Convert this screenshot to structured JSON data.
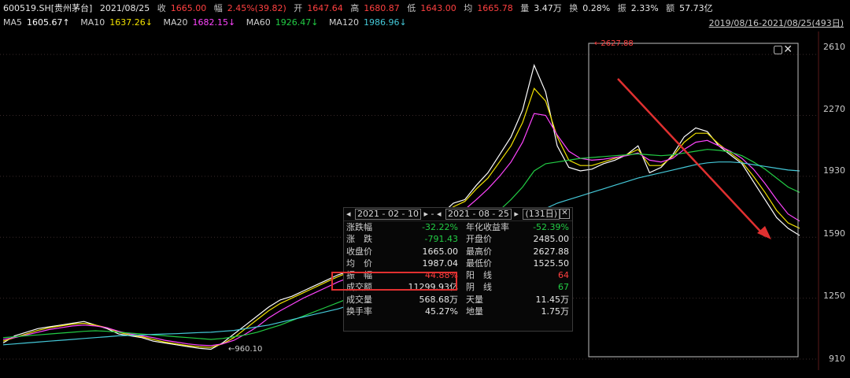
{
  "info": {
    "code": "600519.SH[贵州茅台]",
    "date": "2021/08/25",
    "close_label": "收",
    "close": "1665.00",
    "change_label": "幅",
    "change": "2.45%(39.82)",
    "open_label": "开",
    "open": "1647.64",
    "high_label": "高",
    "high": "1680.87",
    "low_label": "低",
    "low": "1643.00",
    "avg_label": "均",
    "avg": "1665.78",
    "vol_label": "量",
    "vol": "3.47万",
    "turn_label": "换",
    "turn": "0.28%",
    "amp_label": "振",
    "amp": "2.33%",
    "amount_label": "额",
    "amount": "57.73亿"
  },
  "ma": [
    {
      "label": "MA5",
      "value": "1605.67↑",
      "color": "#ffffff"
    },
    {
      "label": "MA10",
      "value": "1637.26↓",
      "color": "#f0e000"
    },
    {
      "label": "MA20",
      "value": "1682.15↓",
      "color": "#ff44ff"
    },
    {
      "label": "MA60",
      "value": "1926.47↓",
      "color": "#22cc44"
    },
    {
      "label": "MA120",
      "value": "1986.96↓",
      "color": "#44c8d8"
    }
  ],
  "date_range": "2019/08/16-2021/08/25(493日)",
  "y_axis": [
    "2610",
    "2270",
    "1930",
    "1590",
    "1250",
    "910"
  ],
  "peak_label": "2627.88",
  "low_label": "960.10",
  "stats": {
    "start_date": "2021 - 02 - 10",
    "end_date": "2021 - 08 - 25",
    "days": "(131日)",
    "rows": [
      {
        "l": "涨跌幅",
        "v": "-32.22%",
        "vc": "#22cc44",
        "l2": "年化收益率",
        "v2": "-52.39%",
        "v2c": "#22cc44"
      },
      {
        "l": "涨　跌",
        "v": "-791.43",
        "vc": "#22cc44",
        "l2": "开盘价",
        "v2": "2485.00",
        "v2c": "#e6e6e6"
      },
      {
        "l": "收盘价",
        "v": "1665.00",
        "vc": "#e6e6e6",
        "l2": "最高价",
        "v2": "2627.88",
        "v2c": "#e6e6e6"
      },
      {
        "l": "均　价",
        "v": "1987.04",
        "vc": "#e6e6e6",
        "l2": "最低价",
        "v2": "1525.50",
        "v2c": "#e6e6e6"
      },
      {
        "l": "振　幅",
        "v": "44.88%",
        "vc": "#ff4040",
        "l2": "阳　线",
        "v2": "64",
        "v2c": "#ff4040"
      },
      {
        "l": "成交额",
        "v": "11299.93亿",
        "vc": "#e6e6e6",
        "l2": "阴　线",
        "v2": "67",
        "v2c": "#22cc44"
      },
      {
        "l": "成交量",
        "v": "568.68万",
        "vc": "#e6e6e6",
        "l2": "天量",
        "v2": "11.45万",
        "v2c": "#e6e6e6"
      },
      {
        "l": "换手率",
        "v": "45.27%",
        "vc": "#e6e6e6",
        "l2": "地量",
        "v2": "1.75万",
        "v2c": "#e6e6e6"
      }
    ]
  },
  "chart_data": {
    "type": "line",
    "ylim": [
      910,
      2650
    ],
    "y_ticks": [
      2610,
      2270,
      1930,
      1590,
      1250,
      910
    ],
    "series": [
      {
        "color": "#ffffff",
        "values": [
          1000,
          1040,
          1060,
          1080,
          1090,
          1100,
          1110,
          1120,
          1100,
          1080,
          1050,
          1040,
          1030,
          1010,
          1000,
          990,
          980,
          970,
          965,
          1000,
          1050,
          1100,
          1150,
          1200,
          1240,
          1260,
          1290,
          1320,
          1350,
          1380,
          1400,
          1440,
          1480,
          1520,
          1560,
          1600,
          1650,
          1700,
          1720,
          1780,
          1800,
          1880,
          1950,
          2050,
          2150,
          2300,
          2550,
          2400,
          2100,
          1980,
          1960,
          1970,
          2000,
          2020,
          2050,
          2100,
          1950,
          1980,
          2050,
          2150,
          2200,
          2180,
          2100,
          2050,
          2000,
          1900,
          1800,
          1700,
          1640,
          1600
        ]
      },
      {
        "color": "#f0e000",
        "values": [
          1010,
          1030,
          1050,
          1070,
          1085,
          1095,
          1105,
          1110,
          1100,
          1085,
          1060,
          1045,
          1035,
          1020,
          1005,
          995,
          985,
          978,
          975,
          995,
          1030,
          1080,
          1130,
          1180,
          1220,
          1250,
          1280,
          1310,
          1340,
          1370,
          1395,
          1430,
          1465,
          1505,
          1545,
          1585,
          1630,
          1680,
          1710,
          1760,
          1790,
          1860,
          1920,
          2010,
          2100,
          2230,
          2420,
          2350,
          2150,
          2020,
          1990,
          1990,
          2010,
          2030,
          2050,
          2080,
          1990,
          1990,
          2040,
          2120,
          2170,
          2170,
          2110,
          2060,
          2010,
          1930,
          1840,
          1740,
          1670,
          1640
        ]
      },
      {
        "color": "#ff44ff",
        "values": [
          1020,
          1030,
          1045,
          1060,
          1075,
          1085,
          1095,
          1100,
          1095,
          1085,
          1065,
          1050,
          1040,
          1030,
          1015,
          1005,
          995,
          988,
          985,
          995,
          1015,
          1050,
          1090,
          1140,
          1180,
          1215,
          1250,
          1280,
          1310,
          1340,
          1365,
          1400,
          1435,
          1470,
          1510,
          1550,
          1590,
          1635,
          1670,
          1710,
          1745,
          1800,
          1860,
          1930,
          2010,
          2120,
          2280,
          2270,
          2160,
          2070,
          2030,
          2020,
          2025,
          2035,
          2045,
          2060,
          2020,
          2010,
          2030,
          2080,
          2120,
          2130,
          2100,
          2070,
          2030,
          1970,
          1890,
          1800,
          1720,
          1680
        ]
      },
      {
        "color": "#22cc44",
        "values": [
          1030,
          1035,
          1040,
          1045,
          1050,
          1055,
          1060,
          1065,
          1068,
          1065,
          1060,
          1055,
          1050,
          1045,
          1040,
          1035,
          1030,
          1025,
          1020,
          1025,
          1035,
          1045,
          1060,
          1080,
          1100,
          1125,
          1150,
          1175,
          1200,
          1225,
          1250,
          1275,
          1305,
          1335,
          1365,
          1395,
          1430,
          1465,
          1500,
          1540,
          1580,
          1630,
          1680,
          1740,
          1800,
          1870,
          1960,
          2000,
          2010,
          2020,
          2030,
          2035,
          2040,
          2045,
          2050,
          2055,
          2050,
          2045,
          2050,
          2060,
          2070,
          2080,
          2075,
          2065,
          2045,
          2010,
          1970,
          1920,
          1870,
          1840
        ]
      },
      {
        "color": "#44c8d8",
        "values": [
          990,
          995,
          1000,
          1005,
          1010,
          1015,
          1020,
          1025,
          1030,
          1035,
          1040,
          1042,
          1045,
          1048,
          1050,
          1052,
          1055,
          1058,
          1060,
          1065,
          1070,
          1080,
          1090,
          1100,
          1115,
          1130,
          1145,
          1160,
          1175,
          1190,
          1210,
          1230,
          1250,
          1270,
          1295,
          1320,
          1345,
          1370,
          1400,
          1430,
          1460,
          1500,
          1540,
          1580,
          1620,
          1660,
          1720,
          1750,
          1780,
          1800,
          1820,
          1840,
          1860,
          1880,
          1900,
          1920,
          1935,
          1950,
          1965,
          1980,
          1995,
          2005,
          2010,
          2010,
          2005,
          1995,
          1985,
          1975,
          1965,
          1960
        ]
      }
    ]
  },
  "icons": {
    "maximize": "maximize-icon",
    "close": "close-icon"
  }
}
